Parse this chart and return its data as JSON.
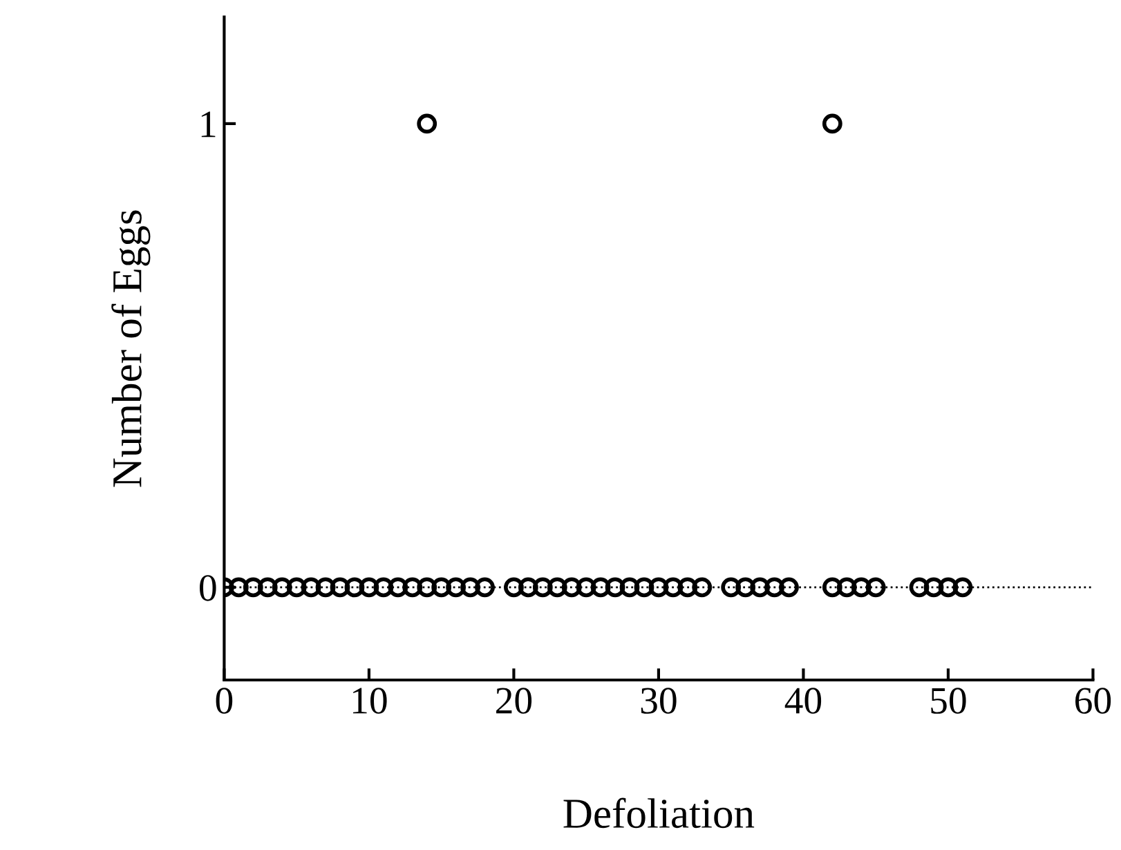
{
  "chart_data": {
    "type": "scatter",
    "xlabel": "Defoliation",
    "ylabel": "Number of Eggs",
    "series": [
      {
        "color": "#000000",
        "x": [
          0,
          1,
          2,
          3,
          4,
          5,
          6,
          7,
          8,
          9,
          10,
          11,
          12,
          13,
          14,
          15,
          16,
          17,
          18,
          20,
          21,
          22,
          23,
          24,
          25,
          26,
          27,
          28,
          29,
          30,
          31,
          32,
          33,
          35,
          36,
          37,
          38,
          39,
          42,
          43,
          44,
          45,
          48,
          49,
          50,
          51,
          14,
          42
        ],
        "values": [
          0,
          0,
          0,
          0,
          0,
          0,
          0,
          0,
          0,
          0,
          0,
          0,
          0,
          0,
          0,
          0,
          0,
          0,
          0,
          0,
          0,
          0,
          0,
          0,
          0,
          0,
          0,
          0,
          0,
          0,
          0,
          0,
          0,
          0,
          0,
          0,
          0,
          0,
          0,
          0,
          0,
          0,
          0,
          0,
          0,
          0,
          1,
          1
        ]
      }
    ],
    "marker": "circle",
    "xlim": [
      0,
      60
    ],
    "xticks": [
      0,
      10,
      20,
      30,
      40,
      50,
      60
    ],
    "ylim": [
      -0.2,
      1.23
    ],
    "yticks": [
      0,
      1
    ],
    "ref_lines": [
      {
        "axis": "y",
        "value": 0,
        "line_style": "dotted",
        "color": "#000000"
      }
    ],
    "grid": false,
    "legend": false
  }
}
